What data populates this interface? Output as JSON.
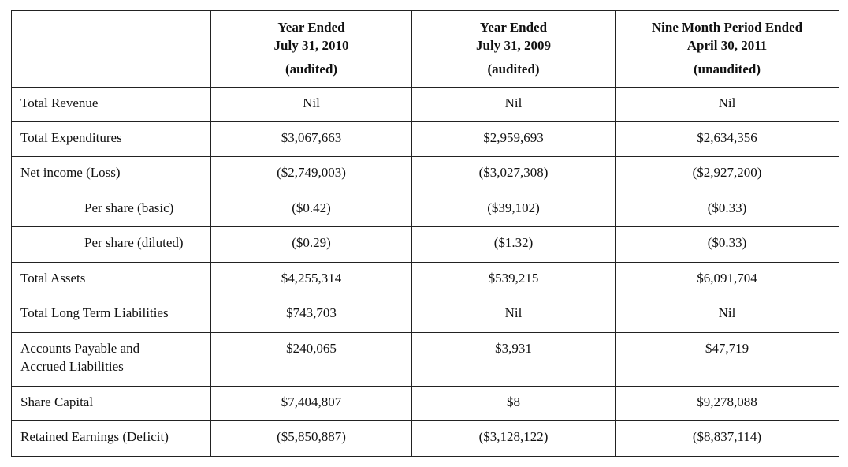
{
  "headers": [
    {
      "line1": "",
      "line2": "",
      "line3": ""
    },
    {
      "line1": "Year Ended",
      "line2": "July 31, 2010",
      "line3": "(audited)"
    },
    {
      "line1": "Year Ended",
      "line2": "July 31, 2009",
      "line3": "(audited)"
    },
    {
      "line1": "Nine Month Period Ended",
      "line2": "April 30, 2011",
      "line3": "(unaudited)"
    }
  ],
  "rows": [
    {
      "label": "Total Revenue",
      "values": [
        "Nil",
        "Nil",
        "Nil"
      ]
    },
    {
      "label": "Total Expenditures",
      "values": [
        "$3,067,663",
        "$2,959,693",
        "$2,634,356"
      ]
    },
    {
      "label": "Net income (Loss)",
      "values": [
        "($2,749,003)",
        "($3,027,308)",
        "($2,927,200)"
      ]
    },
    {
      "label": "Per share (basic)",
      "values": [
        "($0.42)",
        "($39,102)",
        "($0.33)"
      ]
    },
    {
      "label": "Per share (diluted)",
      "values": [
        "($0.29)",
        "($1.32)",
        "($0.33)"
      ]
    },
    {
      "label": "Total Assets",
      "values": [
        "$4,255,314",
        "$539,215",
        "$6,091,704"
      ]
    },
    {
      "label": "Total Long Term Liabilities",
      "values": [
        "$743,703",
        "Nil",
        "Nil"
      ]
    },
    {
      "label_line1": "Accounts Payable and",
      "label_line2": "Accrued Liabilities",
      "values": [
        "$240,065",
        "$3,931",
        "$47,719"
      ]
    },
    {
      "label": "Share Capital",
      "values": [
        "$7,404,807",
        "$8",
        "$9,278,088"
      ]
    },
    {
      "label": "Retained Earnings (Deficit)",
      "values": [
        "($5,850,887)",
        "($3,128,122)",
        "($8,837,114)"
      ]
    }
  ]
}
